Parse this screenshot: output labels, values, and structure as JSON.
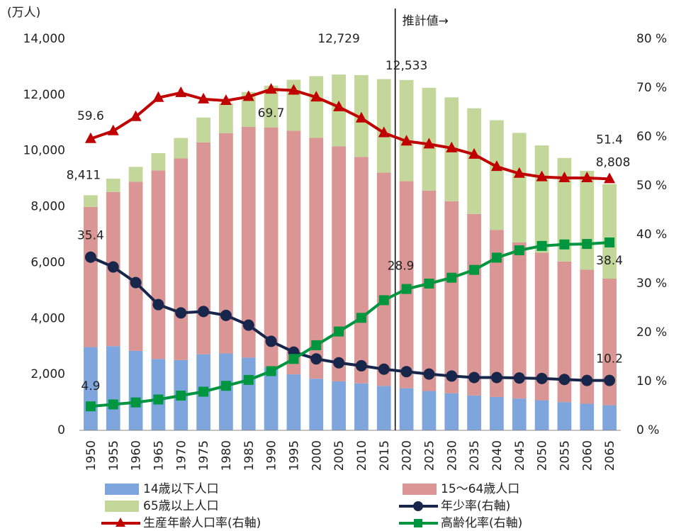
{
  "chart_data": {
    "type": "bar",
    "stacked": true,
    "y_axis_label": "(万人)",
    "categories": [
      "1950",
      "1955",
      "1960",
      "1965",
      "1970",
      "1975",
      "1980",
      "1985",
      "1990",
      "1995",
      "2000",
      "2005",
      "2010",
      "2015",
      "2020",
      "2025",
      "2030",
      "2035",
      "2040",
      "2045",
      "2050",
      "2055",
      "2060",
      "2065"
    ],
    "ylim": [
      0,
      14000
    ],
    "yticks": [
      0,
      {
        "value": 2000,
        "label": "2,000"
      },
      {
        "value": 4000,
        "label": "4,000"
      },
      {
        "value": 6000,
        "label": "6,000"
      },
      {
        "value": 8000,
        "label": "8,000"
      },
      {
        "value": 10000,
        "label": "10,000"
      },
      {
        "value": 12000,
        "label": "12,000"
      },
      {
        "value": 14000,
        "label": "14,000"
      }
    ],
    "y2lim": [
      0,
      80
    ],
    "y2ticks": [
      {
        "value": 0,
        "label": "0 %"
      },
      {
        "value": 10,
        "label": "10 %"
      },
      {
        "value": 20,
        "label": "20 %"
      },
      {
        "value": 30,
        "label": "30 %"
      },
      {
        "value": 40,
        "label": "40 %"
      },
      {
        "value": 50,
        "label": "50 %"
      },
      {
        "value": 60,
        "label": "60 %"
      },
      {
        "value": 70,
        "label": "70 %"
      },
      {
        "value": 80,
        "label": "80 %"
      }
    ],
    "series": [
      {
        "name": "14歳以下人口",
        "type": "bar",
        "color": "#7fa6dc",
        "values": [
          2978,
          3012,
          2843,
          2553,
          2515,
          2722,
          2751,
          2603,
          2249,
          2001,
          1847,
          1752,
          1680,
          1589,
          1507,
          1407,
          1321,
          1246,
          1194,
          1138,
          1077,
          1012,
          951,
          898
        ]
      },
      {
        "name": "15〜64歳人口",
        "type": "bar",
        "color": "#d99694",
        "values": [
          5017,
          5517,
          6047,
          6744,
          7212,
          7581,
          7883,
          8251,
          8590,
          8716,
          8622,
          8409,
          8103,
          7629,
          7406,
          7170,
          6875,
          6494,
          5978,
          5584,
          5275,
          5028,
          4793,
          4529
        ]
      },
      {
        "name": "65歳以上人口",
        "type": "bar",
        "color": "#c4d79b",
        "values": [
          416,
          475,
          535,
          618,
          733,
          887,
          1065,
          1247,
          1489,
          1826,
          2201,
          2568,
          2925,
          3347,
          3620,
          3677,
          3716,
          3782,
          3921,
          3919,
          3841,
          3704,
          3540,
          3381
        ]
      },
      {
        "name": "年少率(右軸)",
        "type": "line",
        "axis": "y2",
        "color": "#17264a",
        "marker": "circle",
        "values": [
          35.4,
          33.4,
          30.2,
          25.7,
          24.0,
          24.3,
          23.5,
          21.5,
          18.2,
          16.0,
          14.6,
          13.8,
          13.2,
          12.5,
          12.0,
          11.5,
          11.1,
          10.8,
          10.8,
          10.7,
          10.6,
          10.4,
          10.2,
          10.2
        ],
        "value_labels": [
          "35.4",
          null,
          null,
          null,
          null,
          null,
          null,
          null,
          null,
          null,
          null,
          null,
          null,
          null,
          null,
          null,
          null,
          null,
          null,
          null,
          null,
          null,
          null,
          "10.2"
        ]
      },
      {
        "name": "生産年齢人口率(右軸)",
        "type": "line",
        "axis": "y2",
        "color": "#c00000",
        "marker": "triangle",
        "values": [
          59.6,
          61.2,
          64.1,
          68.0,
          69.0,
          67.7,
          67.4,
          68.2,
          69.7,
          69.5,
          68.1,
          66.1,
          63.8,
          60.8,
          59.1,
          58.5,
          57.7,
          56.4,
          53.9,
          52.5,
          51.8,
          51.6,
          51.6,
          51.4
        ],
        "value_labels": [
          "59.6",
          null,
          null,
          null,
          null,
          null,
          null,
          null,
          "69.7",
          null,
          null,
          null,
          null,
          null,
          null,
          null,
          null,
          null,
          null,
          null,
          null,
          null,
          null,
          "51.4"
        ]
      },
      {
        "name": "高齢化率(右軸)",
        "type": "line",
        "axis": "y2",
        "color": "#00963f",
        "marker": "square",
        "values": [
          4.9,
          5.3,
          5.7,
          6.3,
          7.1,
          7.9,
          9.1,
          10.3,
          12.1,
          14.6,
          17.4,
          20.2,
          23.0,
          26.6,
          28.9,
          30.0,
          31.2,
          32.8,
          35.3,
          36.8,
          37.7,
          38.0,
          38.1,
          38.4
        ],
        "value_labels": [
          "4.9",
          null,
          null,
          null,
          null,
          null,
          null,
          null,
          null,
          null,
          null,
          null,
          null,
          null,
          "28.9",
          null,
          null,
          null,
          null,
          null,
          null,
          null,
          null,
          "38.4"
        ]
      }
    ],
    "total_labels": [
      {
        "category": "1950",
        "value": 8411,
        "label": "8,411"
      },
      {
        "category": "2005",
        "value": 12729,
        "label": "12,729"
      },
      {
        "category": "2020",
        "value": 12533,
        "label": "12,533"
      },
      {
        "category": "2065",
        "value": 8808,
        "label": "8,808"
      }
    ],
    "divider": {
      "category": "2020",
      "label": "推計値→"
    }
  }
}
